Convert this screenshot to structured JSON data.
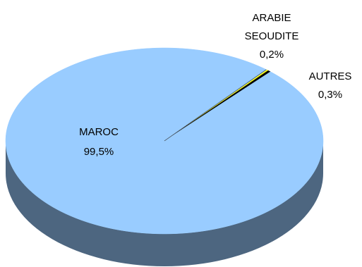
{
  "chart_data": {
    "type": "pie",
    "style": "3d",
    "slices": [
      {
        "label": "MAROC",
        "value": 99.5,
        "value_label": "99,5%",
        "color": "#99CCFF",
        "side_color": "#4D6680"
      },
      {
        "label": "ARABIE SEOUDITE",
        "label_lines": [
          "ARABIE",
          "SEOUDITE"
        ],
        "value": 0.2,
        "value_label": "0,2%",
        "color": "#FFFF00",
        "side_color": "#808000"
      },
      {
        "label": "AUTRES",
        "value": 0.3,
        "value_label": "0,3%",
        "color": "#000000",
        "side_color": "#000000"
      }
    ],
    "legend": "none"
  }
}
